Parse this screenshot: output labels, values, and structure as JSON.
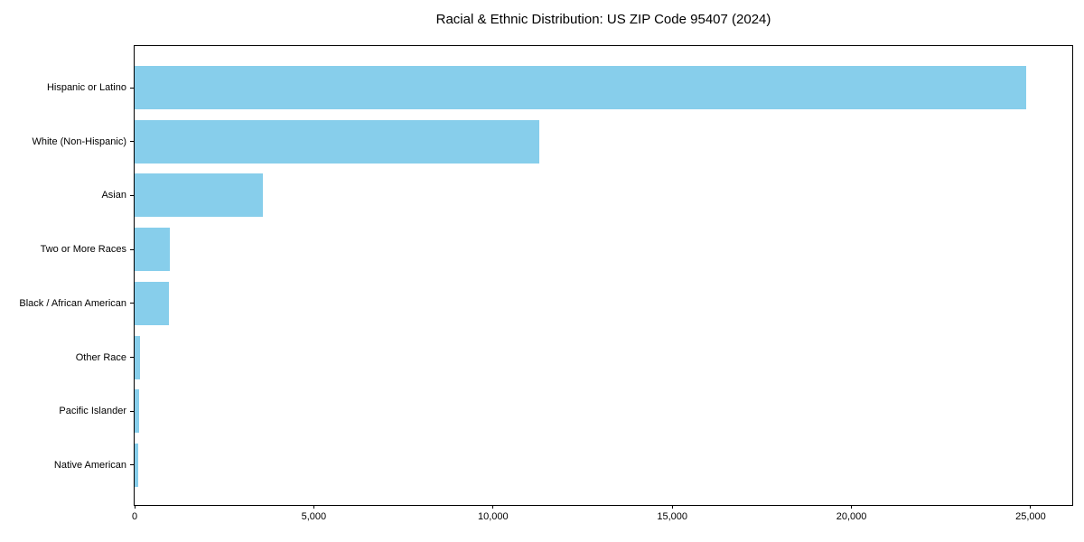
{
  "chart_data": {
    "type": "bar",
    "orientation": "horizontal",
    "title": "Racial & Ethnic Distribution: US ZIP Code 95407 (2024)",
    "categories": [
      "Hispanic or Latino",
      "White (Non-Hispanic)",
      "Asian",
      "Two or More Races",
      "Black / African American",
      "Other Race",
      "Pacific Islander",
      "Native American"
    ],
    "values": [
      24870,
      11290,
      3580,
      975,
      950,
      145,
      125,
      110
    ],
    "xlabel": "",
    "ylabel": "",
    "xlim": [
      0,
      26160
    ],
    "xtick_values": [
      0,
      5000,
      10000,
      15000,
      20000,
      25000
    ],
    "xtick_labels": [
      "0",
      "5,000",
      "10,000",
      "15,000",
      "20,000",
      "25,000"
    ],
    "grid": false,
    "legend_position": "none",
    "colors": {
      "bar": "#87CEEB",
      "spine": "#000000",
      "text": "#000000",
      "background": "#FFFFFF"
    }
  }
}
